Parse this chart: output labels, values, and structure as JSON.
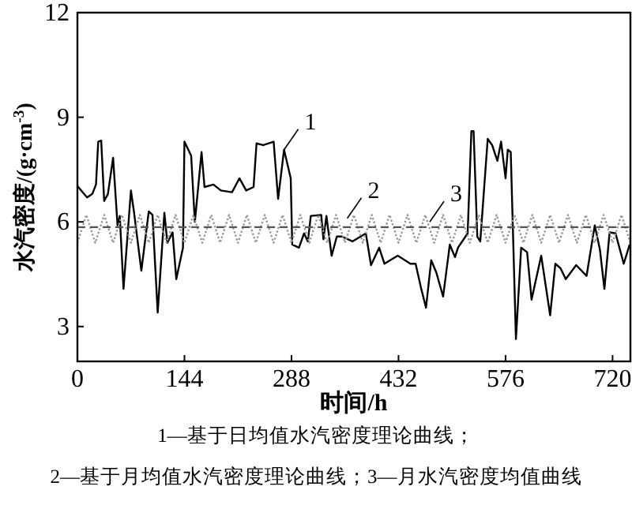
{
  "chart_data": {
    "type": "line",
    "xlabel": "时间/h",
    "ylabel": "水汽密度/(g·cm$^{-3}$)",
    "xlim": [
      0,
      744
    ],
    "ylim": [
      2,
      12
    ],
    "xticks": [
      0,
      144,
      288,
      432,
      576,
      720
    ],
    "yticks": [
      3,
      6,
      9,
      12
    ],
    "grid": false,
    "marker": "none",
    "series": [
      {
        "color": "#000000",
        "line_style": "solid",
        "x": [
          0,
          13,
          20,
          25,
          28,
          32,
          36,
          41,
          48,
          54,
          57,
          62,
          72,
          76,
          86,
          96,
          101,
          108,
          117,
          121,
          128,
          133,
          142,
          144,
          153,
          158,
          167,
          171,
          183,
          193,
          208,
          218,
          227,
          237,
          241,
          250,
          264,
          270,
          278,
          287,
          289,
          298,
          305,
          310,
          314,
          328,
          331,
          335,
          342,
          349,
          356,
          370,
          388,
          395,
          406,
          413,
          431,
          448,
          455,
          462,
          469,
          476,
          483,
          492,
          501,
          508,
          512,
          525,
          530,
          533,
          538,
          542,
          552,
          558,
          565,
          570,
          576,
          579,
          583,
          590,
          597,
          605,
          611,
          624,
          636,
          643,
          650,
          657,
          671,
          685,
          696,
          703,
          709,
          716,
          724,
          735,
          743
        ],
        "values": [
          7.03,
          6.7,
          6.8,
          7.07,
          8.3,
          8.33,
          6.6,
          6.8,
          7.84,
          5.9,
          6.17,
          4.08,
          6.9,
          6.3,
          4.6,
          6.3,
          6.2,
          3.4,
          6.26,
          5.4,
          5.7,
          4.36,
          5.26,
          8.3,
          7.9,
          6.0,
          8.0,
          7.0,
          7.07,
          6.9,
          6.85,
          7.25,
          6.9,
          7.0,
          8.25,
          8.2,
          8.3,
          6.66,
          8.07,
          7.25,
          5.35,
          5.26,
          5.67,
          5.44,
          6.17,
          6.2,
          5.5,
          6.17,
          5.03,
          5.58,
          5.58,
          5.44,
          5.67,
          4.76,
          5.26,
          4.8,
          5.03,
          4.8,
          4.8,
          4.13,
          3.54,
          4.9,
          4.54,
          3.86,
          5.35,
          4.99,
          5.26,
          5.67,
          8.6,
          8.6,
          5.58,
          5.44,
          8.38,
          8.2,
          7.75,
          8.3,
          7.25,
          8.07,
          8.0,
          2.64,
          5.26,
          5.13,
          3.77,
          5.03,
          3.32,
          4.8,
          4.67,
          4.36,
          4.76,
          4.45,
          5.9,
          5.2,
          4.08,
          5.7,
          5.67,
          4.8,
          5.35
        ]
      },
      {
        "color": "#999999",
        "line_style": "dotted",
        "x": [
          0,
          12,
          24,
          36,
          48,
          60,
          72,
          84,
          96,
          108,
          120,
          132,
          144,
          156,
          168,
          180,
          192,
          204,
          216,
          228,
          240,
          252,
          264,
          276,
          288,
          300,
          312,
          324,
          336,
          348,
          360,
          372,
          384,
          396,
          408,
          420,
          432,
          444,
          456,
          468,
          480,
          492,
          504,
          516,
          528,
          540,
          552,
          564,
          576,
          588,
          600,
          612,
          624,
          636,
          648,
          660,
          672,
          684,
          696,
          708,
          720,
          732,
          744
        ],
        "values": [
          5.4,
          6.2,
          5.4,
          6.2,
          5.4,
          6.2,
          5.4,
          6.2,
          5.4,
          6.2,
          5.4,
          6.2,
          5.4,
          6.2,
          5.4,
          6.2,
          5.4,
          6.2,
          5.4,
          6.2,
          5.4,
          6.2,
          5.4,
          6.2,
          5.4,
          6.2,
          5.4,
          6.2,
          5.4,
          6.2,
          5.4,
          6.2,
          5.4,
          6.2,
          5.4,
          6.2,
          5.4,
          6.2,
          5.4,
          6.2,
          5.4,
          6.2,
          5.4,
          6.2,
          5.4,
          6.2,
          5.4,
          6.2,
          5.4,
          6.2,
          5.4,
          6.2,
          5.4,
          6.2,
          5.4,
          6.2,
          5.4,
          6.2,
          5.4,
          6.2,
          5.4,
          6.2,
          5.4
        ]
      },
      {
        "color": "#555555",
        "line_style": "dashed",
        "x": [
          0,
          744
        ],
        "values": [
          5.85,
          5.85
        ]
      }
    ],
    "annotations": [
      {
        "text": "1",
        "x": 278,
        "y": 8.07
      },
      {
        "text": "2",
        "x": 363,
        "y": 6.1
      },
      {
        "text": "3",
        "x": 474,
        "y": 6.0
      },
      "1—基于日均值水汽密度理论曲线；",
      "2—基于月均值水汽密度理论曲线；3—月水汽密度均值曲线"
    ]
  }
}
